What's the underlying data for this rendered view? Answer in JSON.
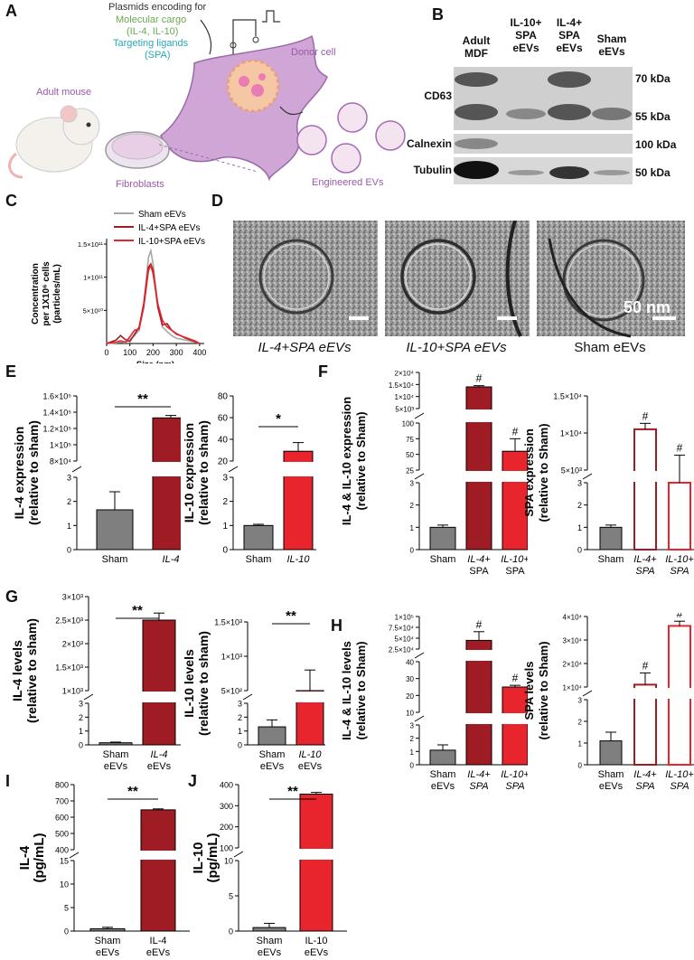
{
  "panels": {
    "A": {
      "label": "A",
      "plasmids": "Plasmids encoding for",
      "cargo": "Molecular cargo",
      "cargo_ils": "(IL-4, IL-10)",
      "ligands": "Targeting ligands",
      "ligand_spa": "(SPA)",
      "donor": "Donor cell",
      "mouse": "Adult mouse",
      "fibroblasts": "Fibroblasts",
      "evs": "Engineered EVs"
    },
    "B": {
      "label": "B",
      "columns": [
        "Adult MDF",
        "IL-10+ SPA eEVs",
        "IL-4+ SPA eEVs",
        "Sham eEVs"
      ],
      "rows": [
        "CD63",
        "Calnexin",
        "Tubulin"
      ],
      "markers": [
        "70 kDa",
        "55 kDa",
        "100 kDa",
        "50 kDa"
      ]
    },
    "C": {
      "label": "C"
    },
    "D": {
      "label": "D",
      "captions": [
        "IL-4+SPA eEVs",
        "IL-10+SPA eEVs",
        "Sham eEVs"
      ],
      "scale": "50 nm"
    },
    "E": {
      "label": "E"
    },
    "F": {
      "label": "F"
    },
    "G": {
      "label": "G"
    },
    "H": {
      "label": "H"
    },
    "I": {
      "label": "I"
    },
    "J": {
      "label": "J"
    }
  },
  "colors": {
    "gray": "#7f7f7f",
    "darkred": "#a01c24",
    "red": "#e8242c",
    "purple": "#a46bb6",
    "cell": "#cfa6d6"
  },
  "chart_data": [
    {
      "id": "C",
      "type": "line",
      "xlabel": "Size (nm)",
      "ylabel": "Concentration per 1X10^6 cells (particles/mL)",
      "xticks": [
        "0",
        "100",
        "200",
        "300",
        "400"
      ],
      "yticks": [
        "1.5×10¹¹",
        "1×10¹¹",
        "5×10¹⁰"
      ],
      "xlim": [
        0,
        420
      ],
      "ylim": [
        0,
        150000000000.0
      ],
      "series": [
        {
          "name": "Sham eEVs",
          "color": "#a6a6a6",
          "x": [
            0,
            40,
            60,
            80,
            100,
            120,
            140,
            160,
            180,
            190,
            200,
            220,
            240,
            260,
            280,
            300,
            340,
            380,
            400
          ],
          "y": [
            0,
            1000000000.0,
            2000000000.0,
            1000000000.0,
            6000000000.0,
            12000000000.0,
            20000000000.0,
            60000000000.0,
            130000000000.0,
            140000000000.0,
            120000000000.0,
            60000000000.0,
            25000000000.0,
            18000000000.0,
            12000000000.0,
            8000000000.0,
            5000000000.0,
            2000000000.0,
            0
          ]
        },
        {
          "name": "IL-4+SPA eEVs",
          "color": "#a01c24",
          "x": [
            0,
            40,
            60,
            80,
            100,
            120,
            140,
            160,
            180,
            190,
            200,
            220,
            240,
            260,
            280,
            300,
            340,
            380,
            400
          ],
          "y": [
            0,
            5000000000.0,
            12000000000.0,
            6000000000.0,
            3000000000.0,
            14000000000.0,
            25000000000.0,
            60000000000.0,
            115000000000.0,
            120000000000.0,
            110000000000.0,
            55000000000.0,
            28000000000.0,
            30000000000.0,
            20000000000.0,
            15000000000.0,
            8000000000.0,
            3000000000.0,
            0
          ]
        },
        {
          "name": "IL-10+SPA eEVs",
          "color": "#e8242c",
          "x": [
            0,
            40,
            60,
            80,
            100,
            120,
            140,
            160,
            180,
            190,
            200,
            220,
            240,
            260,
            280,
            300,
            340,
            380,
            400
          ],
          "y": [
            0,
            2000000000.0,
            4000000000.0,
            2000000000.0,
            10000000000.0,
            20000000000.0,
            22000000000.0,
            55000000000.0,
            110000000000.0,
            118000000000.0,
            105000000000.0,
            60000000000.0,
            35000000000.0,
            25000000000.0,
            20000000000.0,
            14000000000.0,
            9000000000.0,
            4000000000.0,
            0
          ]
        }
      ]
    },
    {
      "id": "E1",
      "type": "bar",
      "ylabel": "IL-4 expression",
      "ylabel2": "(relative to sham)",
      "categories": [
        "Sham",
        "IL-4"
      ],
      "values": [
        1.65,
        133000.0
      ],
      "errors": [
        0.75,
        3000.0
      ],
      "upper_ticks": [
        "1.6×10⁵",
        "1.4×10⁵",
        "1.2×10⁵",
        "1×10⁵",
        "8×10⁴"
      ],
      "lower_ticks": [
        "3",
        "2",
        "1",
        "0"
      ],
      "sig": "**"
    },
    {
      "id": "E2",
      "type": "bar",
      "ylabel": "IL-10 expression",
      "ylabel2": "(relative to sham)",
      "categories": [
        "Sham",
        "IL-10"
      ],
      "values": [
        1.0,
        29
      ],
      "errors": [
        0.05,
        8
      ],
      "upper_ticks": [
        "80",
        "60",
        "40",
        "20"
      ],
      "lower_ticks": [
        "3",
        "2",
        "1",
        "0"
      ],
      "sig": "*"
    },
    {
      "id": "F1",
      "type": "bar",
      "ylabel": "IL-4 & IL-10 expression",
      "ylabel2": "(relative to Sham)",
      "categories": [
        "Sham",
        "IL-4+ SPA",
        "IL-10+ SPA"
      ],
      "values": [
        1.0,
        14000.0,
        55
      ],
      "errors": [
        0.1,
        500,
        20
      ],
      "top_ticks": [
        "2×10⁴",
        "1.5×10⁴",
        "1×10⁴",
        "5×10³"
      ],
      "mid_ticks": [
        "100",
        "75",
        "50",
        "25"
      ],
      "lower_ticks": [
        "3",
        "2",
        "1",
        "0"
      ],
      "sig": [
        "",
        "#",
        "#"
      ]
    },
    {
      "id": "F2",
      "type": "bar",
      "ylabel": "SPA expression",
      "ylabel2": "(relative to Sham)",
      "categories": [
        "Sham",
        "IL-4+ SPA",
        "IL-10+ SPA"
      ],
      "values": [
        1.0,
        10500.0,
        4200.0
      ],
      "errors": [
        0.1,
        800,
        2800
      ],
      "upper_ticks": [
        "1.5×10⁴",
        "1×10⁴",
        "5×10³"
      ],
      "lower_ticks": [
        "3",
        "2",
        "1",
        "0"
      ],
      "sig": [
        "",
        "#",
        "#"
      ]
    },
    {
      "id": "G1",
      "type": "bar",
      "ylabel": "IL-4 levels",
      "ylabel2": "(relative to sham)",
      "categories": [
        "Sham eEVs",
        "IL-4 eEVs"
      ],
      "values": [
        0.15,
        2500.0
      ],
      "errors": [
        0.05,
        150
      ],
      "upper_ticks": [
        "3×10³",
        "2.5×10³",
        "2×10³",
        "1.5×10³",
        "1×10³"
      ],
      "lower_ticks": [
        "3",
        "2",
        "1",
        "0"
      ],
      "sig": "**"
    },
    {
      "id": "G2",
      "type": "bar",
      "ylabel": "IL-10 levels",
      "ylabel2": "(relative to sham)",
      "categories": [
        "Sham eEVs",
        "IL-10 eEVs"
      ],
      "values": [
        1.3,
        500
      ],
      "errors": [
        0.5,
        300
      ],
      "upper_ticks": [
        "1.5×10³",
        "1×10³",
        "5×10²"
      ],
      "lower_ticks": [
        "3",
        "2",
        "1",
        "0"
      ],
      "sig": "**"
    },
    {
      "id": "H1",
      "type": "bar",
      "ylabel": "IL-4 & IL-10 levels",
      "ylabel2": "(relative to Sham)",
      "categories": [
        "Sham eEVs",
        "IL-4+ SPA eEVs",
        "IL-10+ SPA eEVs"
      ],
      "values": [
        1.1,
        45000.0,
        25
      ],
      "errors": [
        0.4,
        20000.0,
        1
      ],
      "top_ticks": [
        "1×10⁵",
        "7.5×10⁴",
        "5×10⁴",
        "2.5×10⁴"
      ],
      "mid_ticks": [
        "40",
        "30",
        "20",
        "10"
      ],
      "lower_ticks": [
        "3",
        "2",
        "1",
        "0"
      ],
      "sig": [
        "",
        "#",
        "#"
      ]
    },
    {
      "id": "H2",
      "type": "bar",
      "ylabel": "SPA levels",
      "ylabel2": "(relative to Sham)",
      "categories": [
        "Sham eEVs",
        "IL-4+ SPA eEVs",
        "IL-10+ SPA eEVs"
      ],
      "values": [
        1.1,
        11000.0,
        36000.0
      ],
      "errors": [
        0.4,
        5000.0,
        2000.0
      ],
      "upper_ticks": [
        "4×10⁴",
        "3×10⁴",
        "2×10⁴",
        "1×10⁴"
      ],
      "lower_ticks": [
        "3",
        "2",
        "1",
        "0"
      ],
      "sig": [
        "",
        "#",
        "#"
      ]
    },
    {
      "id": "I",
      "type": "bar",
      "ylabel": "IL-4",
      "ylabel2": "(pg/mL)",
      "categories": [
        "Sham eEVs",
        "IL-4 eEVs"
      ],
      "values": [
        0.5,
        645
      ],
      "errors": [
        0.3,
        6
      ],
      "upper_ticks": [
        "800",
        "700",
        "600",
        "500",
        "400"
      ],
      "lower_ticks": [
        "15",
        "10",
        "5",
        "0"
      ],
      "sig": "**"
    },
    {
      "id": "J",
      "type": "bar",
      "ylabel": "IL-10",
      "ylabel2": "(pg/mL)",
      "categories": [
        "Sham eEVs",
        "IL-10 eEVs"
      ],
      "values": [
        0.5,
        355
      ],
      "errors": [
        0.6,
        8
      ],
      "upper_ticks": [
        "400",
        "300",
        "200",
        "100"
      ],
      "lower_ticks": [
        "10",
        "5",
        "0"
      ],
      "sig": "**"
    }
  ]
}
